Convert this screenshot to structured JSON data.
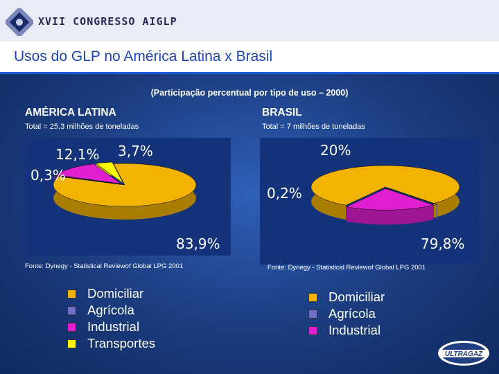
{
  "header": {
    "congress": "XVII CONGRESSO AIGLP"
  },
  "title": "Usos do GLP no América Latina x Brasil",
  "subtitle": "(Participação percentual por tipo de uso – 2000)",
  "brand": "ULTRAGAZ",
  "colors": {
    "domiciliar": "#f2b400",
    "agricola": "#7070c8",
    "industrial": "#e020d0",
    "transportes": "#ffff00"
  },
  "chart_data": [
    {
      "type": "pie",
      "region": "AMÉRICA LATINA",
      "total": "Total = 25,3 milhões de toneladas",
      "categories": [
        "Domiciliar",
        "Agrícola",
        "Industrial",
        "Transportes"
      ],
      "values": [
        83.9,
        0.3,
        12.1,
        3.7
      ],
      "labels": [
        "83,9%",
        "0,3%",
        "12,1%",
        "3,7%"
      ],
      "source": "Fonte: Dynegy - Statistical Reviewof Global LPG 2001"
    },
    {
      "type": "pie",
      "region": "BRASIL",
      "total": "Total = 7 milhões de toneladas",
      "categories": [
        "Domiciliar",
        "Agrícola",
        "Industrial"
      ],
      "values": [
        79.8,
        0.2,
        20
      ],
      "labels": [
        "79,8%",
        "0,2%",
        "20%"
      ],
      "source": "Fonte: Dynegy - Statistical Reviewof Global LPG 2001"
    }
  ]
}
